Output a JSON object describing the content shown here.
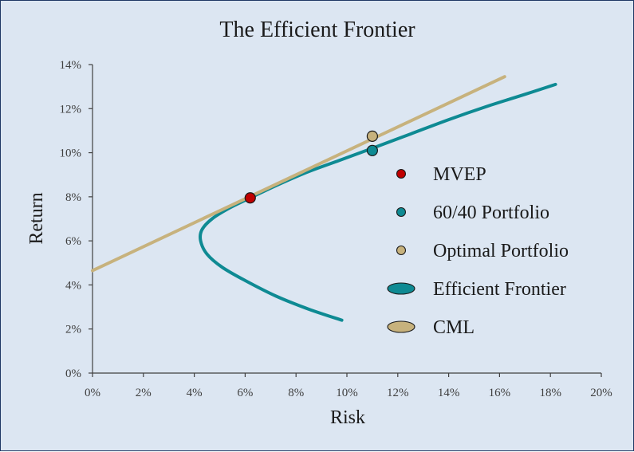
{
  "chart_data": {
    "type": "line",
    "title": "The Efficient Frontier",
    "xlabel": "Risk",
    "ylabel": "Return",
    "xlim": [
      0,
      20
    ],
    "ylim": [
      0,
      14
    ],
    "x_ticks": [
      0,
      2,
      4,
      6,
      8,
      10,
      12,
      14,
      16,
      18,
      20
    ],
    "y_ticks": [
      0,
      2,
      4,
      6,
      8,
      10,
      12,
      14
    ],
    "x_tick_labels": [
      "0%",
      "2%",
      "4%",
      "6%",
      "8%",
      "10%",
      "12%",
      "14%",
      "16%",
      "18%",
      "20%"
    ],
    "y_tick_labels": [
      "0%",
      "2%",
      "4%",
      "6%",
      "8%",
      "10%",
      "12%",
      "14%"
    ],
    "grid": false,
    "legend_position": "right",
    "series": [
      {
        "name": "Efficient Frontier",
        "kind": "line",
        "color": "#0e8a93",
        "x": [
          9.8,
          8.5,
          7.2,
          6.0,
          5.1,
          4.5,
          4.25,
          4.3,
          4.7,
          5.4,
          6.2,
          7.2,
          8.4,
          9.7,
          11.0,
          12.5,
          14.0,
          15.5,
          17.0,
          18.2
        ],
        "y": [
          2.4,
          2.9,
          3.5,
          4.2,
          4.8,
          5.4,
          6.0,
          6.5,
          7.0,
          7.5,
          7.95,
          8.5,
          9.1,
          9.65,
          10.2,
          10.85,
          11.5,
          12.1,
          12.65,
          13.1
        ]
      },
      {
        "name": "CML",
        "kind": "line",
        "color": "#c7b27d",
        "x": [
          0,
          16.2
        ],
        "y": [
          4.65,
          13.45
        ]
      },
      {
        "name": "MVEP",
        "kind": "point",
        "color": "#c00000",
        "x": [
          6.2
        ],
        "y": [
          7.95
        ]
      },
      {
        "name": "60/40 Portfolio",
        "kind": "point",
        "color": "#0e8a93",
        "x": [
          11.0
        ],
        "y": [
          10.1
        ]
      },
      {
        "name": "Optimal Portfolio",
        "kind": "point",
        "color": "#c7b27d",
        "x": [
          11.0
        ],
        "y": [
          10.75
        ]
      }
    ],
    "legend": [
      {
        "label": "MVEP",
        "marker": "dot",
        "color": "#c00000"
      },
      {
        "label": "60/40 Portfolio",
        "marker": "dot",
        "color": "#0e8a93"
      },
      {
        "label": "Optimal Portfolio",
        "marker": "dot",
        "color": "#c7b27d"
      },
      {
        "label": "Efficient Frontier",
        "marker": "ellipse",
        "color": "#0e8a93"
      },
      {
        "label": "CML",
        "marker": "ellipse",
        "color": "#c7b27d"
      }
    ]
  }
}
